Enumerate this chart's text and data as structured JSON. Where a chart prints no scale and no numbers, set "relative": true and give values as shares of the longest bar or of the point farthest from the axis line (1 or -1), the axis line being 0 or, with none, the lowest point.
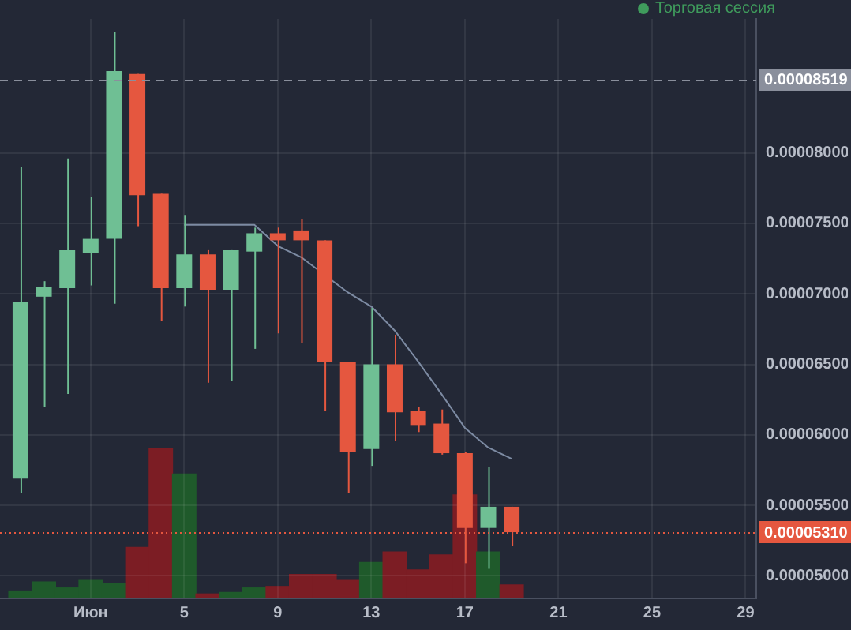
{
  "chart_data": [
    {
      "type": "candlestick",
      "x": [
        "--05-29",
        "--05-30",
        "--05-31",
        "--06-01",
        "--06-02",
        "--06-03",
        "--06-04",
        "--06-05",
        "--06-06",
        "--06-07",
        "--06-08",
        "--06-09",
        "--06-10",
        "--06-11",
        "--06-12",
        "--06-13",
        "--06-14",
        "--06-15",
        "--06-16",
        "--06-17",
        "--06-18",
        "--06-19"
      ],
      "series": [
        {
          "type": "line",
          "color": "#7d8ba3",
          "values": [
            null,
            null,
            null,
            null,
            null,
            null,
            null,
            7.49e-05,
            7.49e-05,
            7.49e-05,
            7.49e-05,
            7.34e-05,
            7.26e-05,
            null,
            7.01e-05,
            6.91e-05,
            6.74e-05,
            6.52e-05,
            6.29e-05,
            6.05e-05,
            5.91e-05,
            5.83e-05
          ]
        },
        {
          "ohlc": [
            [
              5.69e-05,
              7.9e-05,
              5.59e-05,
              6.94e-05
            ],
            [
              6.98e-05,
              7.09e-05,
              6.2e-05,
              7.05e-05
            ],
            [
              7.04e-05,
              7.96e-05,
              6.29e-05,
              7.31e-05
            ],
            [
              7.29e-05,
              7.69e-05,
              7.06e-05,
              7.39e-05
            ],
            [
              7.39e-05,
              8.86e-05,
              6.93e-05,
              8.58e-05
            ],
            [
              8.56e-05,
              8.56e-05,
              7.48e-05,
              7.7e-05
            ],
            [
              7.71e-05,
              7.71e-05,
              6.81e-05,
              7.04e-05
            ],
            [
              7.04e-05,
              7.56e-05,
              6.91e-05,
              7.28e-05
            ],
            [
              7.28e-05,
              7.31e-05,
              6.37e-05,
              7.03e-05
            ],
            [
              7.03e-05,
              7.31e-05,
              6.38e-05,
              7.31e-05
            ],
            [
              7.3e-05,
              7.47e-05,
              6.61e-05,
              7.43e-05
            ],
            [
              7.43e-05,
              7.47e-05,
              6.72e-05,
              7.38e-05
            ],
            [
              7.45e-05,
              7.53e-05,
              6.65e-05,
              7.38e-05
            ],
            [
              7.38e-05,
              7.38e-05,
              6.17e-05,
              6.52e-05
            ],
            [
              6.52e-05,
              6.52e-05,
              5.59e-05,
              5.88e-05
            ],
            [
              5.9e-05,
              6.9e-05,
              5.78e-05,
              6.5e-05
            ],
            [
              6.5e-05,
              6.71e-05,
              5.96e-05,
              6.16e-05
            ],
            [
              6.17e-05,
              6.2e-05,
              6.02e-05,
              6.07e-05
            ],
            [
              6.08e-05,
              6.18e-05,
              5.86e-05,
              5.87e-05
            ],
            [
              5.87e-05,
              5.88e-05,
              5.09e-05,
              5.34e-05
            ],
            [
              5.34e-05,
              5.77e-05,
              5.05e-05,
              5.49e-05
            ],
            [
              5.49e-05,
              5.49e-05,
              5.21e-05,
              5.31e-05
            ]
          ],
          "colors": [
            "#6fbf94",
            "#6fbf94",
            "#6fbf94",
            "#6fbf94",
            "#6fbf94",
            "#e5573f",
            "#e5573f",
            "#6fbf94",
            "#e5573f",
            "#6fbf94",
            "#6fbf94",
            "#e5573f",
            "#e5573f",
            "#e5573f",
            "#e5573f",
            "#6fbf94",
            "#e5573f",
            "#e5573f",
            "#e5573f",
            "#e5573f",
            "#6fbf94",
            "#e5573f"
          ]
        }
      ],
      "xlim": [
        "--05-28T03:00",
        "--06-29T11:00"
      ],
      "xticks": [
        {
          "value": "--06-01",
          "label": "Июн"
        },
        {
          "value": "--06-05",
          "label": "5"
        },
        {
          "value": "--06-09",
          "label": "9"
        },
        {
          "value": "--06-13",
          "label": "13"
        },
        {
          "value": "--06-17",
          "label": "17"
        },
        {
          "value": "--06-21",
          "label": "21"
        },
        {
          "value": "--06-25",
          "label": "25"
        },
        {
          "value": "--06-29",
          "label": "29"
        }
      ],
      "ylim": [
        4.84e-05,
        8.95e-05
      ],
      "yticks": [
        {
          "value": 5e-05,
          "label": "0.00005000"
        },
        {
          "value": 5.5e-05,
          "label": "0.00005500"
        },
        {
          "value": 6e-05,
          "label": "0.00006000"
        },
        {
          "value": 6.5e-05,
          "label": "0.00006500"
        },
        {
          "value": 7e-05,
          "label": "0.00007000"
        },
        {
          "value": 7.5e-05,
          "label": "0.00007500"
        },
        {
          "value": 8e-05,
          "label": "0.00008000"
        }
      ],
      "ref_lines": [
        {
          "axis": "y",
          "value": 8.519e-05,
          "label": "0.00008519",
          "color": "#8a8f9c",
          "line_style": "dashed"
        },
        {
          "axis": "y",
          "value": 5.31e-05,
          "label": "0.00005310",
          "color": "#e5573f",
          "line_style": "dotted"
        }
      ],
      "annotations": [
        "Торговая сессия"
      ],
      "grid": true,
      "legend": false,
      "marker": "none"
    },
    {
      "type": "bar",
      "relative": true,
      "x": [
        "--05-29",
        "--05-30",
        "--05-31",
        "--06-01",
        "--06-02",
        "--06-03",
        "--06-04",
        "--06-05",
        "--06-06",
        "--06-07",
        "--06-08",
        "--06-09",
        "--06-10",
        "--06-11",
        "--06-12",
        "--06-13",
        "--06-14",
        "--06-15",
        "--06-16",
        "--06-17",
        "--06-18",
        "--06-19"
      ],
      "xlim": [
        "--05-28T03:00",
        "--06-29T11:00"
      ],
      "values": [
        0.05,
        0.11,
        0.07,
        0.12,
        0.1,
        0.34,
        1,
        0.83,
        0.03,
        0.04,
        0.07,
        0.08,
        0.16,
        0.16,
        0.12,
        0.24,
        0.31,
        0.19,
        0.29,
        0.69,
        0.31,
        0.09
      ],
      "colors": [
        "#1f5a2b",
        "#1f5a2b",
        "#1f5a2b",
        "#1f5a2b",
        "#1f5a2b",
        "#7c1d24",
        "#7c1d24",
        "#1f5a2b",
        "#7c1d24",
        "#1f5a2b",
        "#1f5a2b",
        "#7c1d24",
        "#7c1d24",
        "#7c1d24",
        "#7c1d24",
        "#1f5a2b",
        "#7c1d24",
        "#7c1d24",
        "#7c1d24",
        "#7c1d24",
        "#1f5a2b",
        "#7c1d24"
      ]
    }
  ]
}
